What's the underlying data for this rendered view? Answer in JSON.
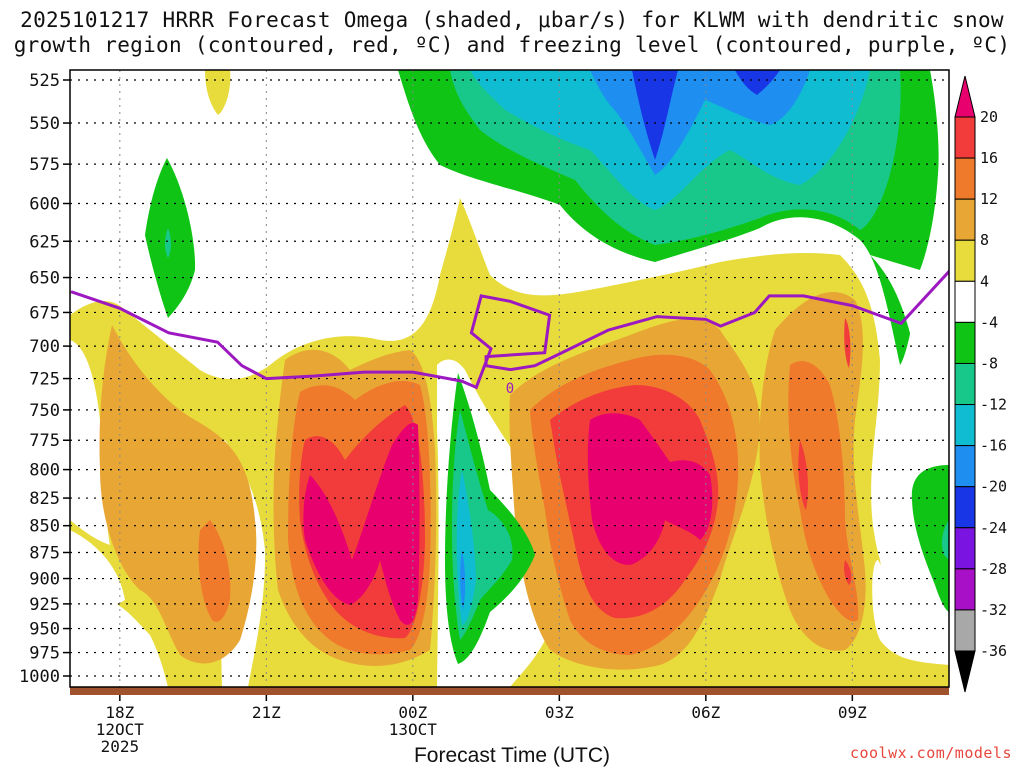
{
  "chart_data": {
    "type": "contour",
    "title_line1": "2025101217 HRRR Forecast Omega (shaded, μbar/s) for KLWM with dendritic snow",
    "title_line2": "growth region (contoured, red, ºC) and freezing level (contoured, purple, ºC)",
    "xlabel": "Forecast Time (UTC)",
    "credit": "coolwx.com/models",
    "x_ticks": [
      {
        "hour": 0,
        "label": "18Z",
        "sub1": "12OCT",
        "sub2": "2025"
      },
      {
        "hour": 3,
        "label": "21Z",
        "sub1": "",
        "sub2": ""
      },
      {
        "hour": 6,
        "label": "00Z",
        "sub1": "13OCT",
        "sub2": ""
      },
      {
        "hour": 9,
        "label": "03Z",
        "sub1": "",
        "sub2": ""
      },
      {
        "hour": 12,
        "label": "06Z",
        "sub1": "",
        "sub2": ""
      },
      {
        "hour": 15,
        "label": "09Z",
        "sub1": "",
        "sub2": ""
      }
    ],
    "x_range_hours": [
      -1,
      17
    ],
    "y_levels_mb": [
      "525",
      "550",
      "575",
      "600",
      "625",
      "650",
      "675",
      "700",
      "725",
      "750",
      "775",
      "800",
      "825",
      "850",
      "875",
      "900",
      "925",
      "950",
      "975",
      "1000"
    ],
    "colorbar": {
      "labels": [
        "20",
        "16",
        "12",
        "8",
        "4",
        "-4",
        "-8",
        "-12",
        "-16",
        "-20",
        "-24",
        "-28",
        "-32",
        "-36"
      ],
      "colors": [
        "#e8006f",
        "#f23b3b",
        "#f07a2b",
        "#e8a635",
        "#e8dc3c",
        "#ffffff",
        "#10c416",
        "#18c88a",
        "#10bcd2",
        "#1e8ef0",
        "#1836e6",
        "#7a14e0",
        "#a810c8",
        "#a8a8a8",
        "#000000"
      ]
    },
    "freezing_level": [
      [
        -1,
        660
      ],
      [
        0,
        672
      ],
      [
        1,
        690
      ],
      [
        2,
        697
      ],
      [
        2.5,
        715
      ],
      [
        3,
        725
      ],
      [
        4,
        723
      ],
      [
        5,
        720
      ],
      [
        6,
        720
      ],
      [
        7,
        727
      ],
      [
        7.3,
        732
      ],
      [
        7.6,
        702
      ],
      [
        7.2,
        690
      ],
      [
        7.4,
        663
      ],
      [
        8,
        667
      ],
      [
        8.8,
        677
      ],
      [
        8.7,
        705
      ],
      [
        7.5,
        708
      ],
      [
        7.5,
        715
      ],
      [
        8,
        718
      ],
      [
        8.5,
        715
      ],
      [
        9,
        706
      ],
      [
        10,
        688
      ],
      [
        11,
        678
      ],
      [
        12,
        680
      ],
      [
        12.3,
        685
      ],
      [
        13,
        675
      ],
      [
        13.3,
        663
      ],
      [
        14,
        663
      ],
      [
        15,
        670
      ],
      [
        16,
        683
      ],
      [
        17,
        645
      ]
    ]
  }
}
